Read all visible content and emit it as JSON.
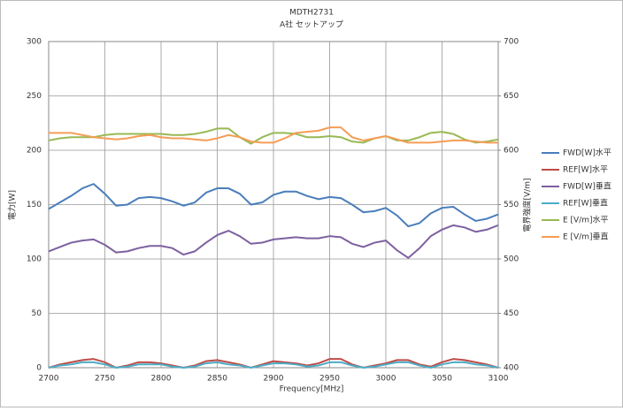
{
  "chart_data": {
    "type": "line",
    "title": "MDTH2731",
    "subtitle": "A社 セットアップ",
    "x_label": "Frequency[MHz]",
    "y_label": "電力[W]",
    "y2_label": "電界強度[V/m]",
    "x": [
      2700,
      2710,
      2720,
      2730,
      2740,
      2750,
      2760,
      2770,
      2780,
      2790,
      2800,
      2810,
      2820,
      2830,
      2840,
      2850,
      2860,
      2870,
      2880,
      2890,
      2900,
      2910,
      2920,
      2930,
      2940,
      2950,
      2960,
      2970,
      2980,
      2990,
      3000,
      3010,
      3020,
      3030,
      3040,
      3050,
      3060,
      3070,
      3080,
      3090,
      3100
    ],
    "xlim": [
      2700,
      3100
    ],
    "xticks": [
      2700,
      2750,
      2800,
      2850,
      2900,
      2950,
      3000,
      3050,
      3100
    ],
    "ylim": [
      0,
      300
    ],
    "yticks": [
      0,
      50,
      100,
      150,
      200,
      250,
      300
    ],
    "y2lim": [
      400,
      700
    ],
    "y2ticks": [
      400,
      450,
      500,
      550,
      600,
      650,
      700
    ],
    "grid": true,
    "legend": "right",
    "series": [
      {
        "name": "FWD[W]水平",
        "color": "#4a7ebb",
        "values": [
          146,
          152,
          158,
          165,
          169,
          160,
          149,
          150,
          156,
          157,
          156,
          153,
          149,
          152,
          161,
          165,
          165,
          160,
          150,
          152,
          159,
          162,
          162,
          158,
          155,
          157,
          156,
          150,
          143,
          144,
          147,
          140,
          130,
          133,
          142,
          147,
          148,
          141,
          135,
          137,
          141
        ]
      },
      {
        "name": "REF[W]水平",
        "color": "#be4b48",
        "values": [
          0,
          3,
          5,
          7,
          8,
          5,
          0,
          2,
          5,
          5,
          4,
          2,
          0,
          2,
          6,
          7,
          5,
          3,
          0,
          3,
          6,
          5,
          4,
          2,
          4,
          8,
          8,
          3,
          0,
          2,
          4,
          7,
          7,
          3,
          1,
          5,
          8,
          7,
          5,
          3,
          0
        ]
      },
      {
        "name": "FWD[W]垂直",
        "color": "#7d60a0",
        "values": [
          107,
          111,
          115,
          117,
          118,
          113,
          106,
          107,
          110,
          112,
          112,
          110,
          104,
          107,
          115,
          122,
          126,
          121,
          114,
          115,
          118,
          119,
          120,
          119,
          119,
          121,
          120,
          114,
          111,
          115,
          117,
          108,
          101,
          110,
          121,
          127,
          131,
          129,
          125,
          127,
          131
        ]
      },
      {
        "name": "REF[W]垂直",
        "color": "#4bacc6",
        "values": [
          0,
          2,
          3,
          5,
          5,
          3,
          0,
          1,
          3,
          3,
          3,
          1,
          0,
          1,
          4,
          5,
          3,
          2,
          0,
          2,
          4,
          4,
          3,
          1,
          2,
          5,
          5,
          2,
          0,
          1,
          3,
          5,
          5,
          2,
          0,
          3,
          5,
          5,
          3,
          2,
          0
        ]
      },
      {
        "name": "E [V/m]水平",
        "color": "#98b954",
        "axis": "y2",
        "values": [
          609,
          611,
          612,
          612,
          612,
          614,
          615,
          615,
          615,
          615,
          615,
          614,
          614,
          615,
          617,
          620,
          620,
          612,
          606,
          612,
          616,
          616,
          615,
          612,
          612,
          613,
          612,
          608,
          607,
          611,
          613,
          609,
          609,
          612,
          616,
          617,
          615,
          610,
          607,
          608,
          610
        ]
      },
      {
        "name": "E [V/m]垂直",
        "color": "#f59d56",
        "axis": "y2",
        "values": [
          616,
          616,
          616,
          614,
          612,
          611,
          610,
          611,
          613,
          614,
          612,
          611,
          611,
          610,
          609,
          611,
          614,
          612,
          608,
          607,
          607,
          611,
          616,
          617,
          618,
          621,
          621,
          612,
          609,
          611,
          613,
          610,
          607,
          607,
          607,
          608,
          609,
          609,
          608,
          607,
          607
        ]
      }
    ]
  }
}
